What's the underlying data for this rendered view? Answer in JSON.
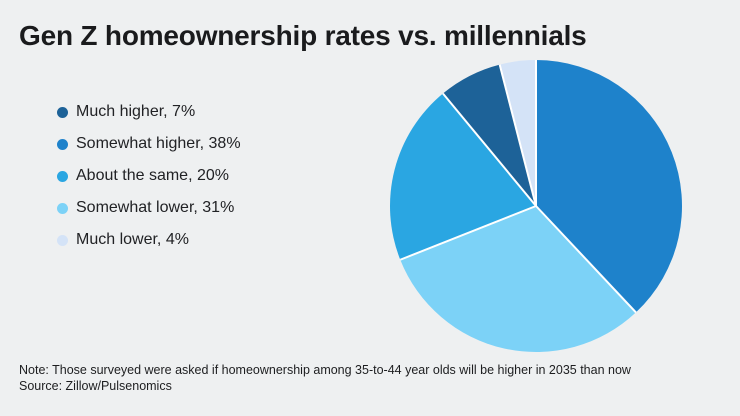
{
  "note": "Note: Those surveyed were asked if homeownership among 35-to-44 year olds will be higher in 2035 than now",
  "source": "Source: Zillow/Pulsenomics",
  "colors": {
    "background": "#eef0f1",
    "title_text": "#1a1b1d",
    "legend_text": "#212225",
    "footnote_text": "#1d1e20",
    "separator": "#ffffff"
  },
  "chart_data": {
    "type": "pie",
    "title": "Gen Z homeownership rates vs. millennials",
    "legend_position": "left",
    "start_angle_deg": 0,
    "direction": "clockwise",
    "slices": [
      {
        "label": "Much higher",
        "value": 7,
        "color": "#1d6298"
      },
      {
        "label": "Somewhat higher",
        "value": 38,
        "color": "#1e82cb"
      },
      {
        "label": "About the same",
        "value": 20,
        "color": "#2aa6e2"
      },
      {
        "label": "Somewhat lower",
        "value": 31,
        "color": "#7cd2f7"
      },
      {
        "label": "Much lower",
        "value": 4,
        "color": "#d4e3f7"
      }
    ],
    "pie_order_clockwise_from_top": [
      "Somewhat higher",
      "Somewhat lower",
      "About the same",
      "Much higher",
      "Much lower"
    ],
    "legend_label_format": "{label}, {value}%"
  }
}
